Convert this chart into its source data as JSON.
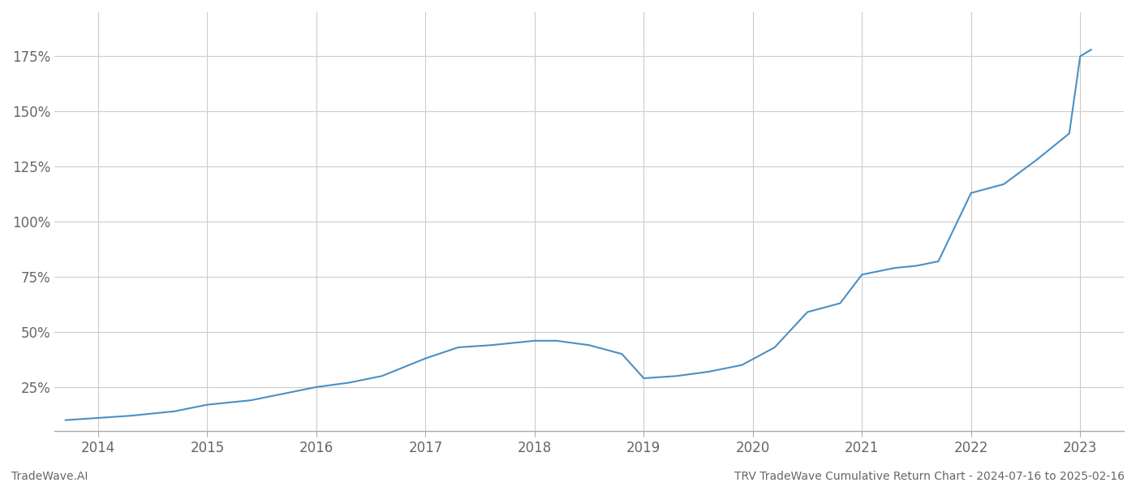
{
  "title_left": "TradeWave.AI",
  "title_right": "TRV TradeWave Cumulative Return Chart - 2024-07-16 to 2025-02-16",
  "line_color": "#4a90c4",
  "background_color": "#ffffff",
  "grid_color": "#cccccc",
  "x_values": [
    2013.7,
    2014.0,
    2014.3,
    2014.7,
    2015.0,
    2015.4,
    2015.8,
    2016.0,
    2016.3,
    2016.6,
    2017.0,
    2017.3,
    2017.6,
    2018.0,
    2018.2,
    2018.5,
    2018.8,
    2019.0,
    2019.3,
    2019.6,
    2019.9,
    2020.2,
    2020.5,
    2020.8,
    2021.0,
    2021.3,
    2021.5,
    2021.7,
    2022.0,
    2022.3,
    2022.6,
    2022.9,
    2023.0,
    2023.1
  ],
  "y_values": [
    10,
    11,
    12,
    14,
    17,
    19,
    23,
    25,
    27,
    30,
    38,
    43,
    44,
    46,
    46,
    44,
    40,
    29,
    30,
    32,
    35,
    43,
    59,
    63,
    76,
    79,
    80,
    82,
    113,
    117,
    128,
    140,
    175,
    178
  ],
  "x_ticks": [
    2014,
    2015,
    2016,
    2017,
    2018,
    2019,
    2020,
    2021,
    2022,
    2023
  ],
  "y_ticks": [
    25,
    50,
    75,
    100,
    125,
    150,
    175
  ],
  "y_tick_labels": [
    "25%",
    "50%",
    "75%",
    "100%",
    "125%",
    "150%",
    "175%"
  ],
  "xlim": [
    2013.6,
    2023.4
  ],
  "ylim": [
    5,
    195
  ],
  "line_width": 1.5,
  "tick_fontsize": 12,
  "footer_fontsize": 10
}
